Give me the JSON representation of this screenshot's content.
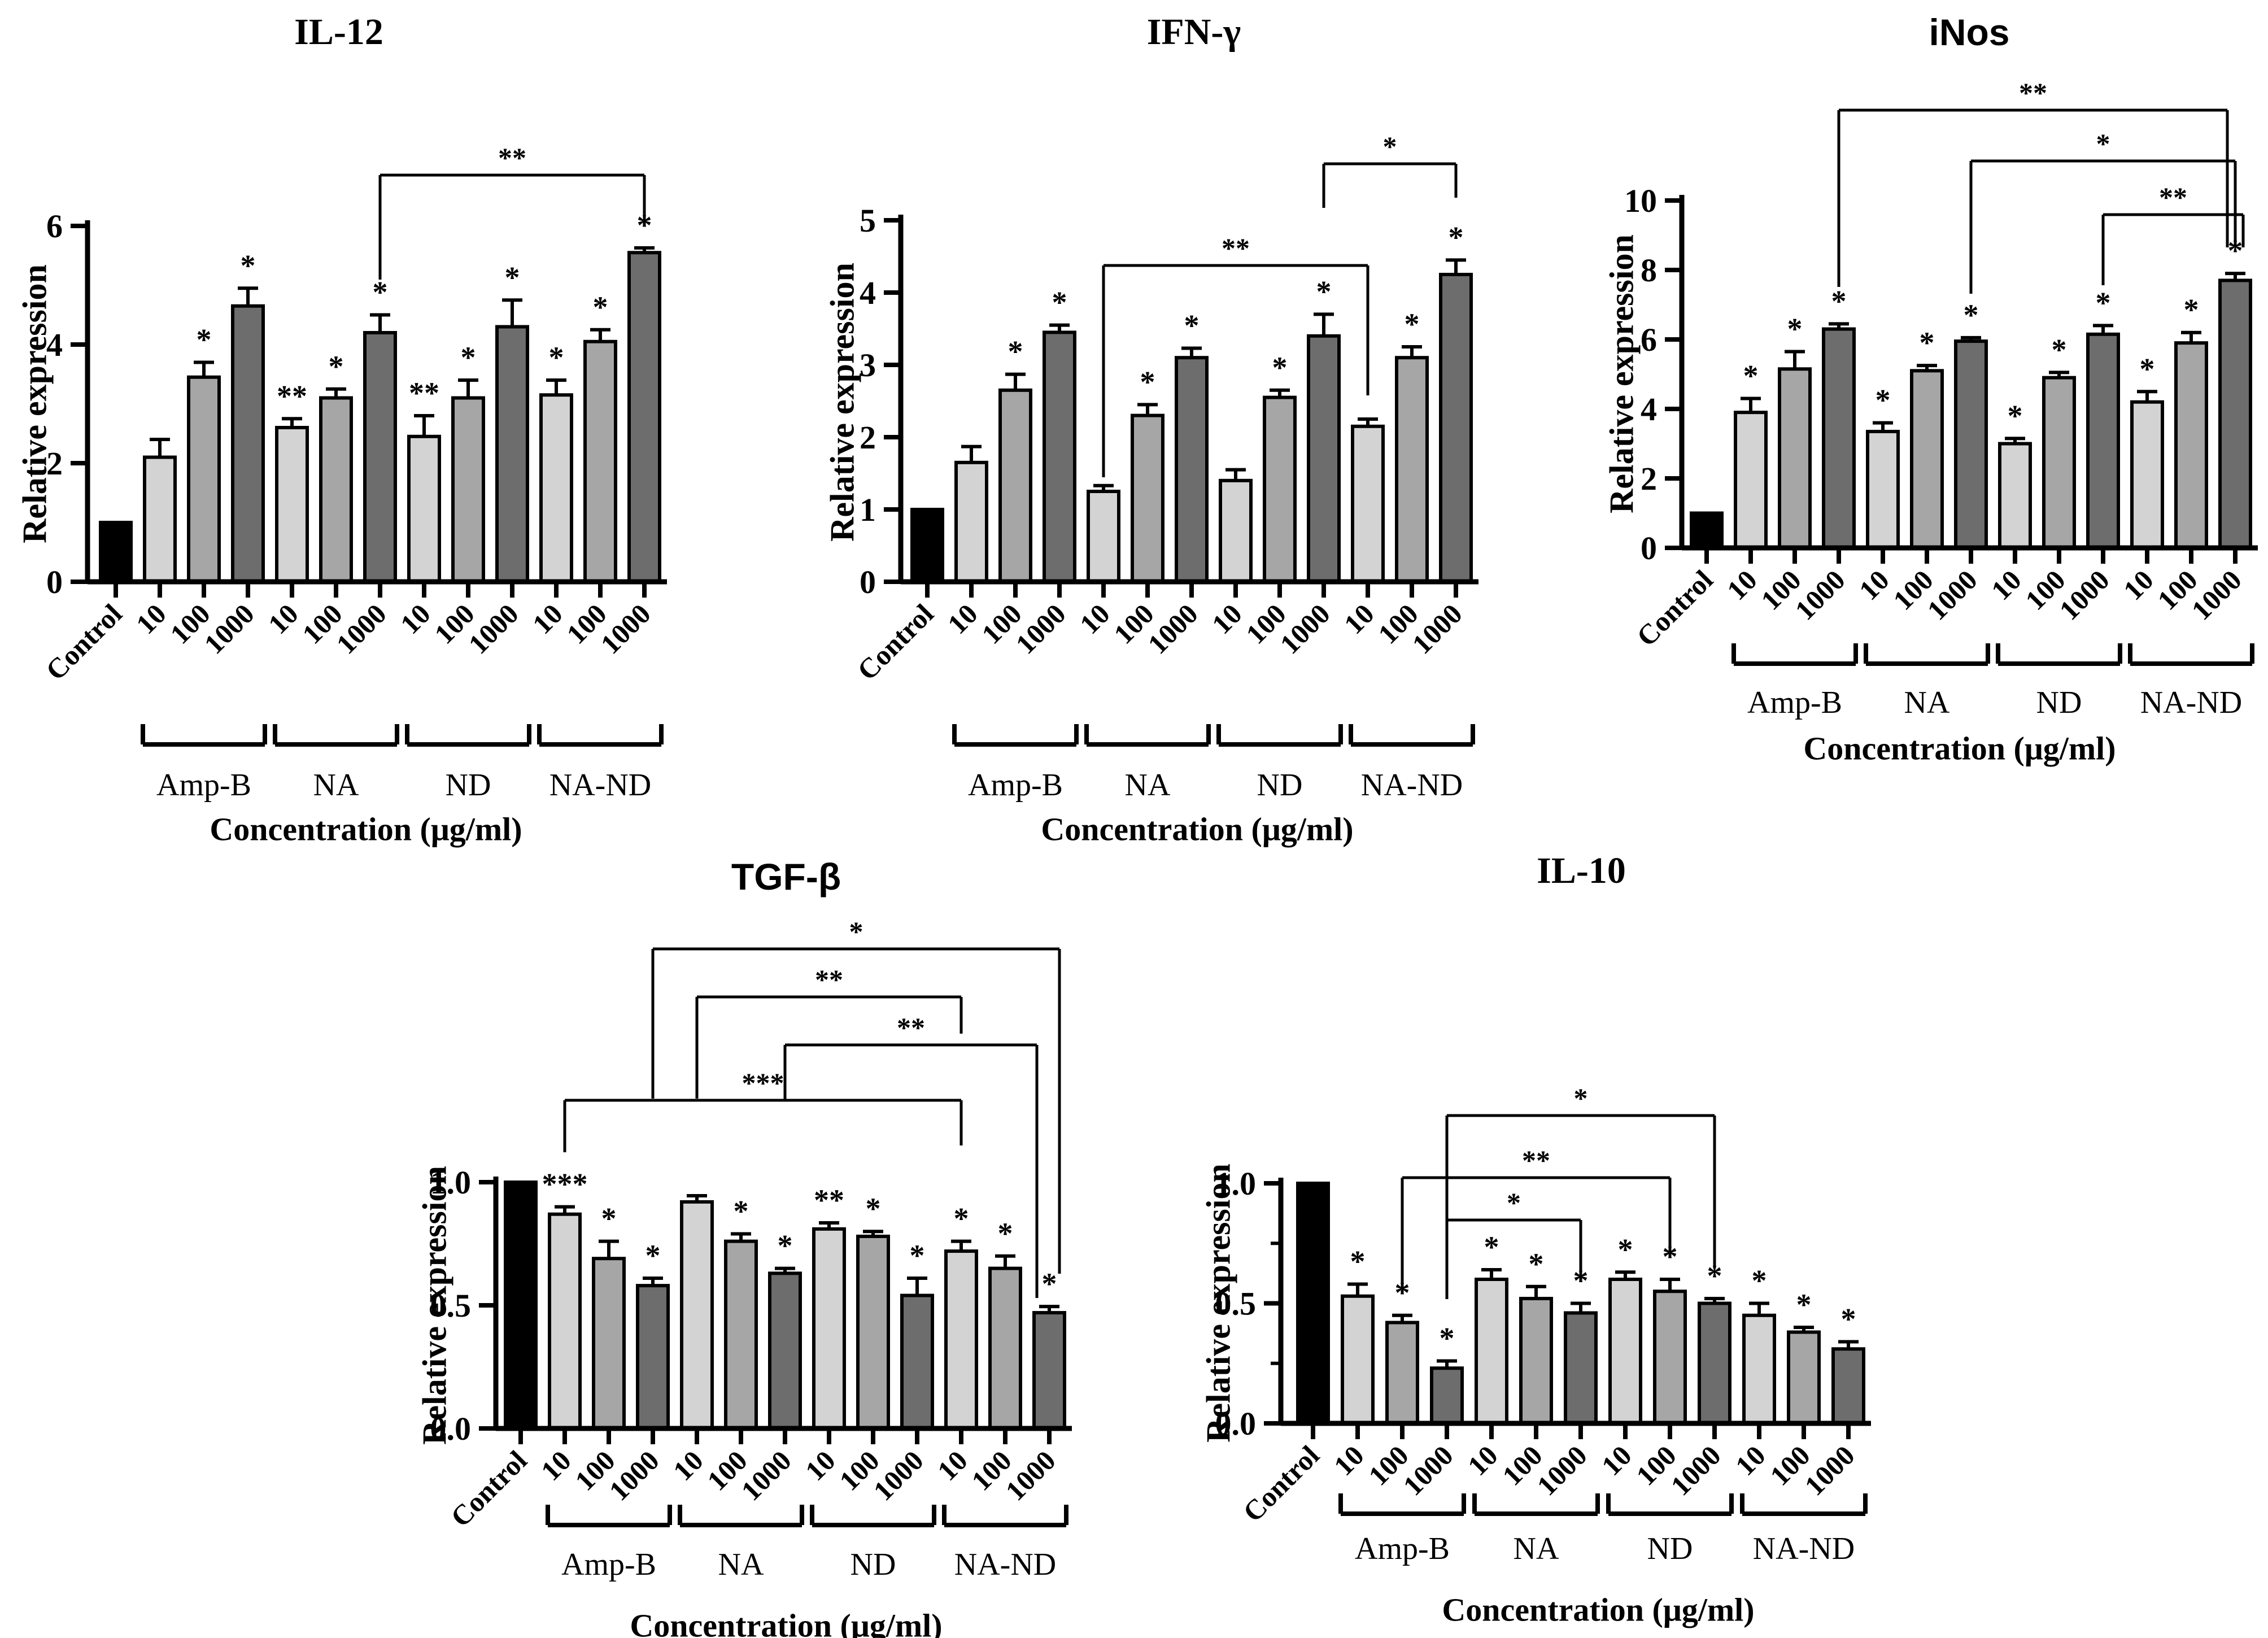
{
  "page": {
    "background": "#ffffff"
  },
  "colors": {
    "control_bar": "#000000",
    "dose10_bar": "#d3d3d3",
    "dose100_bar": "#a6a6a6",
    "dose1000_bar": "#6d6d6d",
    "axis": "#000000"
  },
  "categories": [
    "Control",
    "10",
    "100",
    "1000",
    "10",
    "100",
    "1000",
    "10",
    "100",
    "1000",
    "10",
    "100",
    "1000"
  ],
  "group_labels": [
    "Amp-B",
    "NA",
    "ND",
    "NA-ND"
  ],
  "chart_data": [
    {
      "id": "il12",
      "type": "bar",
      "title": "IL-12",
      "title_style": "serif",
      "ylabel": "Relative expression",
      "xlabel": "Concentration (μg/ml)",
      "ylim": [
        0,
        6
      ],
      "yticks": [
        0,
        2,
        4,
        6
      ],
      "minor_yticks": [],
      "grid": false,
      "legend": "none",
      "values": [
        1.0,
        2.1,
        3.45,
        4.65,
        2.6,
        3.1,
        4.2,
        2.45,
        3.1,
        4.3,
        3.15,
        4.05,
        5.55
      ],
      "errors": [
        0,
        0.3,
        0.25,
        0.3,
        0.15,
        0.15,
        0.3,
        0.35,
        0.3,
        0.45,
        0.25,
        0.2,
        0.08
      ],
      "sig": [
        "",
        "",
        "*",
        "*",
        "**",
        "*",
        "*",
        "**",
        "*",
        "*",
        "*",
        "*",
        "*"
      ],
      "brackets": [
        {
          "from": 6,
          "to": 12,
          "label": "**",
          "y": 310,
          "fd": 495,
          "td": 400,
          "fo": 0,
          "to_off": 0
        }
      ]
    },
    {
      "id": "ifng",
      "type": "bar",
      "title": "IFN-γ",
      "title_style": "serif",
      "ylabel": "Relative expression",
      "xlabel": "Concentration (μg/ml)",
      "ylim": [
        0,
        5
      ],
      "yticks": [
        0,
        1,
        2,
        3,
        4,
        5
      ],
      "minor_yticks": [],
      "grid": false,
      "legend": "none",
      "values": [
        1.0,
        1.65,
        2.65,
        3.45,
        1.25,
        2.3,
        3.1,
        1.4,
        2.55,
        3.4,
        2.15,
        3.1,
        4.25
      ],
      "errors": [
        0,
        0.22,
        0.22,
        0.1,
        0.08,
        0.15,
        0.13,
        0.15,
        0.1,
        0.3,
        0.1,
        0.15,
        0.2
      ],
      "sig": [
        "",
        "",
        "*",
        "*",
        "",
        "*",
        "*",
        "",
        "*",
        "*",
        "",
        "*",
        "*"
      ],
      "brackets": [
        {
          "from": 4,
          "to": 10,
          "label": "**",
          "y": 470,
          "fd": 845,
          "td": 700,
          "fo": 0,
          "to_off": 0
        },
        {
          "from": 9,
          "to": 12,
          "label": "*",
          "y": 290,
          "fd": 368,
          "td": 350,
          "fo": 0,
          "to_off": 0
        }
      ]
    },
    {
      "id": "inos",
      "type": "bar",
      "title": "iNos",
      "title_style": "sans",
      "ylabel": "Relative expression",
      "xlabel": "Concentration (μg/ml)",
      "ylim": [
        0,
        10
      ],
      "yticks": [
        0,
        2,
        4,
        6,
        8,
        10
      ],
      "minor_yticks": [],
      "grid": false,
      "legend": "none",
      "values": [
        1.0,
        3.9,
        5.15,
        6.3,
        3.35,
        5.1,
        5.95,
        3.0,
        4.9,
        6.15,
        4.2,
        5.9,
        7.7
      ],
      "errors": [
        0,
        0.4,
        0.5,
        0.15,
        0.25,
        0.15,
        0.1,
        0.15,
        0.15,
        0.25,
        0.3,
        0.3,
        0.2
      ],
      "sig": [
        "",
        "*",
        "*",
        "*",
        "*",
        "*",
        "*",
        "*",
        "*",
        "*",
        "*",
        "*",
        "*"
      ],
      "brackets": [
        {
          "from": 3,
          "to": 12,
          "label": "**",
          "y": 195,
          "fd": 508,
          "td": 438,
          "fo": 0,
          "to_off": -14
        },
        {
          "from": 6,
          "to": 12,
          "label": "*",
          "y": 285,
          "fd": 520,
          "td": 438,
          "fo": 0,
          "to_off": 0
        },
        {
          "from": 9,
          "to": 12,
          "label": "**",
          "y": 380,
          "fd": 505,
          "td": 438,
          "fo": 0,
          "to_off": 14
        }
      ]
    },
    {
      "id": "tgfb",
      "type": "bar",
      "title": "TGF-β",
      "title_style": "sans",
      "ylabel": "Relative expression",
      "xlabel": "Concentration (μg/ml)",
      "ylim": [
        0,
        1
      ],
      "yticks": [
        0,
        0.5,
        1
      ],
      "minor_yticks": [],
      "grid": false,
      "legend": "none",
      "values": [
        1.0,
        0.87,
        0.69,
        0.58,
        0.92,
        0.76,
        0.63,
        0.81,
        0.78,
        0.54,
        0.72,
        0.65,
        0.47
      ],
      "errors": [
        0,
        0.03,
        0.07,
        0.03,
        0.025,
        0.03,
        0.02,
        0.025,
        0.02,
        0.07,
        0.04,
        0.05,
        0.025
      ],
      "sig": [
        "",
        "***",
        "*",
        "*",
        "",
        "*",
        "*",
        "**",
        "*",
        "*",
        "*",
        "*",
        "*"
      ],
      "brackets": [
        {
          "from": 3,
          "to": 12,
          "label": "*",
          "y": 1680,
          "fd": 1945,
          "td": 2255,
          "fo": 0,
          "to_off": 18
        },
        {
          "from": 4,
          "to": 10,
          "label": "**",
          "y": 1765,
          "fd": 1945,
          "td": 1830,
          "fo": 0,
          "to_off": 0
        },
        {
          "from": 6,
          "to": 12,
          "label": "**",
          "y": 1850,
          "fd": 1948,
          "td": 2298,
          "fo": 0,
          "to_off": -22
        },
        {
          "from": 1,
          "to": 10,
          "label": "***",
          "y": 1948,
          "fd": 2040,
          "td": 2028,
          "fo": 0,
          "to_off": 0
        }
      ]
    },
    {
      "id": "il10",
      "type": "bar",
      "title": "IL-10",
      "title_style": "serif",
      "ylabel": "Relative expression",
      "xlabel": "Concentration (μg/ml)",
      "ylim": [
        0,
        1
      ],
      "yticks": [
        0,
        0.5,
        1
      ],
      "minor_yticks": [
        0.25,
        0.75
      ],
      "grid": false,
      "legend": "none",
      "values": [
        1.0,
        0.53,
        0.42,
        0.23,
        0.6,
        0.52,
        0.46,
        0.6,
        0.55,
        0.5,
        0.45,
        0.38,
        0.31
      ],
      "errors": [
        0,
        0.05,
        0.03,
        0.03,
        0.04,
        0.05,
        0.04,
        0.03,
        0.05,
        0.02,
        0.05,
        0.02,
        0.03
      ],
      "sig": [
        "",
        "*",
        "*",
        "*",
        "*",
        "*",
        "*",
        "*",
        "*",
        "*",
        "*",
        "*",
        "*"
      ],
      "brackets": [
        {
          "from": 3,
          "to": 9,
          "label": "*",
          "y": 1975,
          "fd": 2300,
          "td": 2245,
          "fo": 0,
          "to_off": 0
        },
        {
          "from": 2,
          "to": 8,
          "label": "**",
          "y": 2085,
          "fd": 2288,
          "td": 2225,
          "fo": 0,
          "to_off": 0
        },
        {
          "from": 3,
          "to": 6,
          "label": "*",
          "y": 2160,
          "fd": 2300,
          "td": 2270,
          "fo": 0,
          "to_off": 0
        }
      ]
    }
  ]
}
